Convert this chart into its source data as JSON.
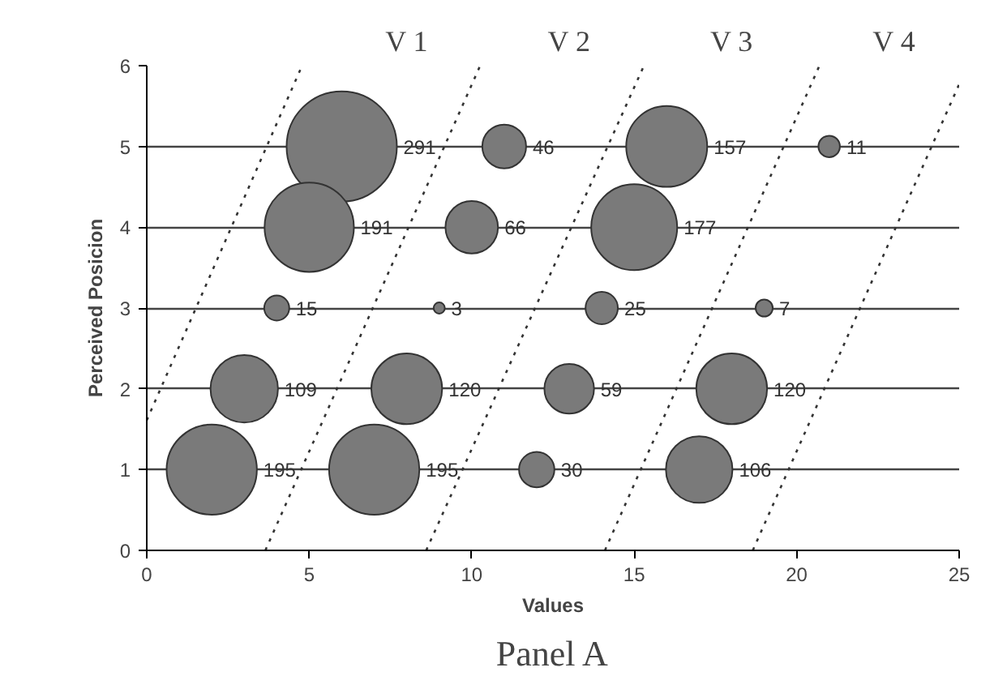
{
  "chart_data": {
    "type": "bubble",
    "xlabel": "Values",
    "ylabel": "Perceived Posicion",
    "xlim": [
      0,
      25
    ],
    "ylim": [
      0,
      6
    ],
    "xticks": [
      0,
      5,
      10,
      15,
      20,
      25
    ],
    "yticks": [
      0,
      1,
      2,
      3,
      4,
      5,
      6
    ],
    "grid": "y",
    "marker": "circle",
    "annotations": [
      "V 1",
      "V 2",
      "V 3",
      "V 4",
      "Panel A"
    ],
    "series": [
      {
        "color": "#7a7a7a",
        "x": [
          6,
          11,
          16,
          21,
          5,
          10,
          15,
          4,
          9,
          14,
          19,
          3,
          8,
          13,
          18,
          2,
          7,
          12,
          17
        ],
        "values": [
          5,
          5,
          5,
          5,
          4,
          4,
          4,
          3,
          3,
          3,
          3,
          2,
          2,
          2,
          2,
          1,
          1,
          1,
          1
        ],
        "sizes": [
          291,
          46,
          157,
          11,
          191,
          66,
          177,
          15,
          3,
          25,
          7,
          109,
          120,
          59,
          120,
          195,
          195,
          30,
          106
        ],
        "value_labels": [
          "291",
          "46",
          "157",
          "11",
          "191",
          "66",
          "177",
          "15",
          "3",
          "25",
          "7",
          "109",
          "120",
          "59",
          "120",
          "195",
          "195",
          "30",
          "106"
        ]
      },
      {
        "type": "line",
        "marker": "none",
        "color": "#333333",
        "line_style": "dotted",
        "x": [
          0,
          4.78
        ],
        "values": [
          1.61,
          6
        ]
      },
      {
        "type": "line",
        "marker": "none",
        "color": "#333333",
        "line_style": "dotted",
        "x": [
          3.65,
          10.26
        ],
        "values": [
          0,
          6
        ]
      },
      {
        "type": "line",
        "marker": "none",
        "color": "#333333",
        "line_style": "dotted",
        "x": [
          8.6,
          15.3
        ],
        "values": [
          0,
          6
        ]
      },
      {
        "type": "line",
        "marker": "none",
        "color": "#333333",
        "line_style": "dotted",
        "x": [
          14.1,
          20.7
        ],
        "values": [
          0,
          6
        ]
      },
      {
        "type": "line",
        "marker": "none",
        "color": "#333333",
        "line_style": "dotted",
        "x": [
          18.65,
          25
        ],
        "values": [
          0,
          5.77
        ]
      }
    ]
  }
}
